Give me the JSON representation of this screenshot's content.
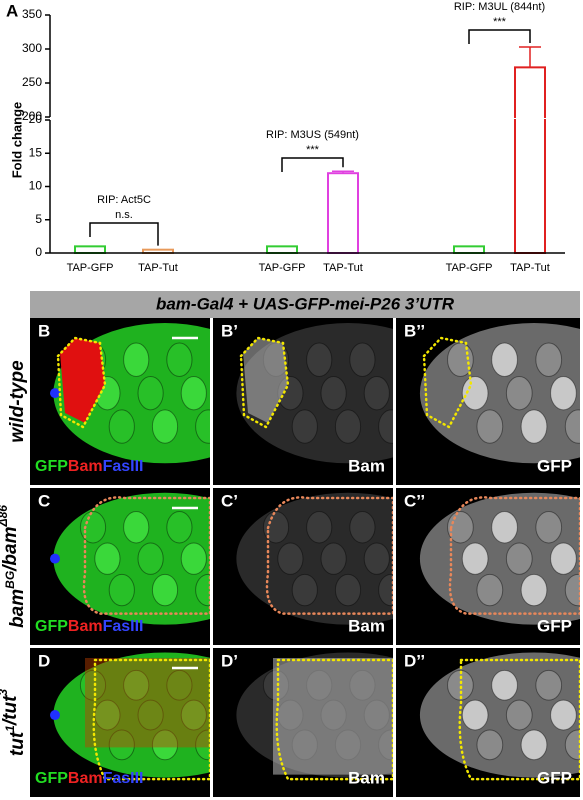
{
  "chart_data": {
    "type": "bar",
    "panel_label": "A",
    "ylabel": "Fold change",
    "categories": [
      "TAP-GFP",
      "TAP-Tut",
      "TAP-GFP",
      "TAP-Tut",
      "TAP-GFP",
      "TAP-Tut"
    ],
    "values": [
      1,
      0.5,
      1,
      12,
      1,
      273
    ],
    "errors": [
      null,
      null,
      null,
      0.3,
      null,
      30
    ],
    "colors": [
      "#33cc33",
      "#e89a5a",
      "#33cc33",
      "#e040e0",
      "#33cc33",
      "#e02020"
    ],
    "ylim": [
      0,
      350
    ],
    "axis_break": [
      20,
      200
    ],
    "yticks": [
      0,
      5,
      10,
      15,
      20,
      200,
      250,
      300,
      350
    ],
    "groups": [
      {
        "title": "RIP: Act5C",
        "significance": "n.s."
      },
      {
        "title": "RIP: M3US (549nt)",
        "significance": "***"
      },
      {
        "title": "RIP: M3UL (844nt)",
        "significance": "***"
      }
    ]
  },
  "figure": {
    "banner": "bam-Gal4 + UAS-GFP-mei-P26 3’UTR",
    "rows": [
      {
        "genotype": [
          {
            "text": "wild-type"
          }
        ],
        "panel_labels": [
          "B",
          "B’",
          "B’’"
        ],
        "channels": [
          "GFP",
          "Bam",
          "FasIII"
        ],
        "captions": [
          "Bam",
          "GFP"
        ]
      },
      {
        "genotype": [
          {
            "text": "bam",
            "sup": "BG"
          },
          {
            "text": "/bam",
            "sup": "Δ86"
          }
        ],
        "panel_labels": [
          "C",
          "C’",
          "C’’"
        ],
        "channels": [
          "GFP",
          "Bam",
          "FasIII"
        ],
        "captions": [
          "Bam",
          "GFP"
        ]
      },
      {
        "genotype": [
          {
            "text": "tut",
            "sup": "1"
          },
          {
            "text": "/tut",
            "sup": "3"
          }
        ],
        "panel_labels": [
          "D",
          "D’",
          "D’’"
        ],
        "channels": [
          "GFP",
          "Bam",
          "FasIII"
        ],
        "captions": [
          "Bam",
          "GFP"
        ]
      }
    ]
  }
}
